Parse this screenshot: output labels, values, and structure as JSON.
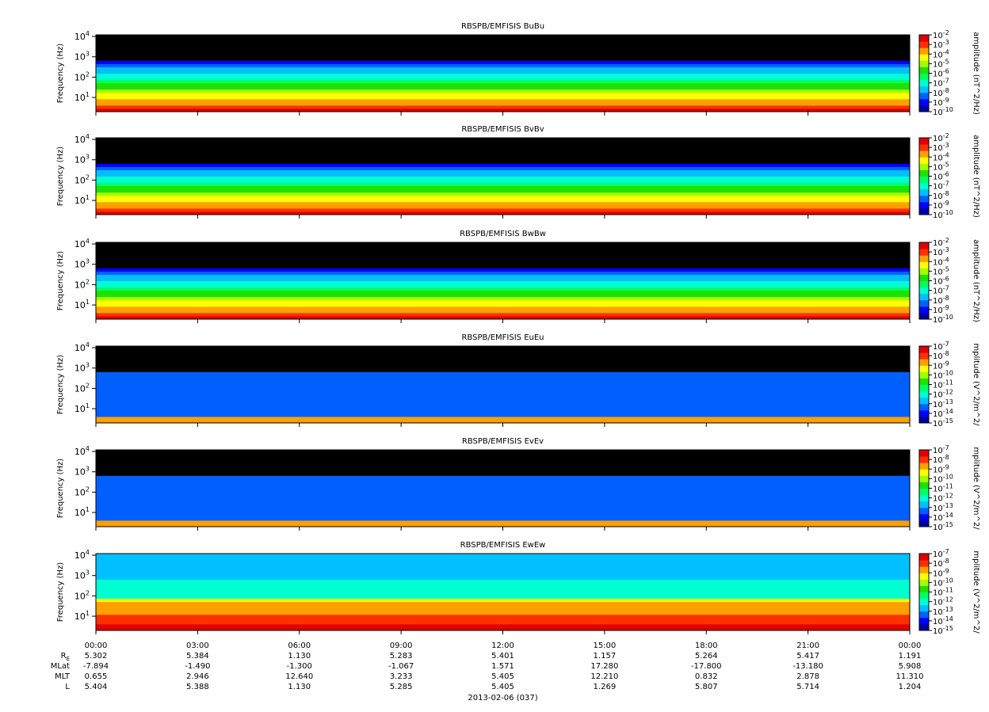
{
  "chart_data": [
    {
      "type": "heatmap",
      "title": "RBSPB/EMFISIS  BuBu",
      "ylabel": "Frequency (Hz)",
      "yscale": "log",
      "ylim": [
        2,
        12000
      ],
      "yticks": [
        [
          "10",
          "1"
        ],
        [
          "10",
          "2"
        ],
        [
          "10",
          "3"
        ],
        [
          "10",
          "4"
        ]
      ],
      "colorbar_label": "amplitude (nT^2/Hz)",
      "colorbar_ticks": [
        [
          "10",
          "-2"
        ],
        [
          "10",
          "-3"
        ],
        [
          "10",
          "-4"
        ],
        [
          "10",
          "-5"
        ],
        [
          "10",
          "-6"
        ],
        [
          "10",
          "-7"
        ],
        [
          "10",
          "-8"
        ],
        [
          "10",
          "-9"
        ],
        [
          "10",
          "-10"
        ]
      ],
      "colorbar_range": [
        -10,
        -2
      ]
    },
    {
      "type": "heatmap",
      "title": "RBSPB/EMFISIS  BvBv",
      "ylabel": "Frequency (Hz)",
      "yscale": "log",
      "ylim": [
        2,
        12000
      ],
      "yticks": [
        [
          "10",
          "1"
        ],
        [
          "10",
          "2"
        ],
        [
          "10",
          "3"
        ],
        [
          "10",
          "4"
        ]
      ],
      "colorbar_label": "amplitude (nT^2/Hz)",
      "colorbar_ticks": [
        [
          "10",
          "-2"
        ],
        [
          "10",
          "-3"
        ],
        [
          "10",
          "-4"
        ],
        [
          "10",
          "-5"
        ],
        [
          "10",
          "-6"
        ],
        [
          "10",
          "-7"
        ],
        [
          "10",
          "-8"
        ],
        [
          "10",
          "-9"
        ],
        [
          "10",
          "-10"
        ]
      ],
      "colorbar_range": [
        -10,
        -2
      ]
    },
    {
      "type": "heatmap",
      "title": "RBSPB/EMFISIS  BwBw",
      "ylabel": "Frequency (Hz)",
      "yscale": "log",
      "ylim": [
        2,
        12000
      ],
      "yticks": [
        [
          "10",
          "1"
        ],
        [
          "10",
          "2"
        ],
        [
          "10",
          "3"
        ],
        [
          "10",
          "4"
        ]
      ],
      "colorbar_label": "amplitude (nT^2/Hz)",
      "colorbar_ticks": [
        [
          "10",
          "-2"
        ],
        [
          "10",
          "-3"
        ],
        [
          "10",
          "-4"
        ],
        [
          "10",
          "-5"
        ],
        [
          "10",
          "-6"
        ],
        [
          "10",
          "-7"
        ],
        [
          "10",
          "-8"
        ],
        [
          "10",
          "-9"
        ],
        [
          "10",
          "-10"
        ]
      ],
      "colorbar_range": [
        -10,
        -2
      ]
    },
    {
      "type": "heatmap",
      "title": "RBSPB/EMFISIS  EuEu",
      "ylabel": "Frequency (Hz)",
      "yscale": "log",
      "ylim": [
        2,
        12000
      ],
      "yticks": [
        [
          "10",
          "1"
        ],
        [
          "10",
          "2"
        ],
        [
          "10",
          "3"
        ],
        [
          "10",
          "4"
        ]
      ],
      "colorbar_label": "mplitude (V^2/m^2/",
      "colorbar_ticks": [
        [
          "10",
          "-7"
        ],
        [
          "10",
          "-8"
        ],
        [
          "10",
          "-9"
        ],
        [
          "10",
          "-10"
        ],
        [
          "10",
          "-11"
        ],
        [
          "10",
          "-12"
        ],
        [
          "10",
          "-13"
        ],
        [
          "10",
          "-14"
        ],
        [
          "10",
          "-15"
        ]
      ],
      "colorbar_range": [
        -15,
        -7
      ]
    },
    {
      "type": "heatmap",
      "title": "RBSPB/EMFISIS  EvEv",
      "ylabel": "Frequency (Hz)",
      "yscale": "log",
      "ylim": [
        2,
        12000
      ],
      "yticks": [
        [
          "10",
          "1"
        ],
        [
          "10",
          "2"
        ],
        [
          "10",
          "3"
        ],
        [
          "10",
          "4"
        ]
      ],
      "colorbar_label": "mplitude (V^2/m^2/",
      "colorbar_ticks": [
        [
          "10",
          "-7"
        ],
        [
          "10",
          "-8"
        ],
        [
          "10",
          "-9"
        ],
        [
          "10",
          "-10"
        ],
        [
          "10",
          "-11"
        ],
        [
          "10",
          "-12"
        ],
        [
          "10",
          "-13"
        ],
        [
          "10",
          "-14"
        ],
        [
          "10",
          "-15"
        ]
      ],
      "colorbar_range": [
        -15,
        -7
      ]
    },
    {
      "type": "heatmap",
      "title": "RBSPB/EMFISIS  EwEw",
      "ylabel": "Frequency (Hz)",
      "yscale": "log",
      "ylim": [
        2,
        12000
      ],
      "yticks": [
        [
          "10",
          "1"
        ],
        [
          "10",
          "2"
        ],
        [
          "10",
          "3"
        ],
        [
          "10",
          "4"
        ]
      ],
      "colorbar_label": "mplitude (V^2/m^2/",
      "colorbar_ticks": [
        [
          "10",
          "-7"
        ],
        [
          "10",
          "-8"
        ],
        [
          "10",
          "-9"
        ],
        [
          "10",
          "-10"
        ],
        [
          "10",
          "-11"
        ],
        [
          "10",
          "-12"
        ],
        [
          "10",
          "-13"
        ],
        [
          "10",
          "-14"
        ],
        [
          "10",
          "-15"
        ]
      ],
      "colorbar_range": [
        -15,
        -7
      ]
    }
  ],
  "x_axis": {
    "ticks": [
      "00:00",
      "03:00",
      "06:00",
      "09:00",
      "12:00",
      "15:00",
      "18:00",
      "21:00",
      "00:00"
    ],
    "ephemeris": [
      {
        "label": "R",
        "sub": "E",
        "values": [
          "5.302",
          "5.384",
          "1.130",
          "5.283",
          "5.401",
          "1.157",
          "5.264",
          "5.417",
          "1.191"
        ]
      },
      {
        "label": "MLat",
        "values": [
          "-7.894",
          "-1.490",
          "-1.300",
          "-1.067",
          "1.571",
          "17.280",
          "-17.800",
          "-13.180",
          "5.908"
        ]
      },
      {
        "label": "MLT",
        "values": [
          "0.655",
          "2.946",
          "12.640",
          "3.233",
          "5.405",
          "12.210",
          "0.832",
          "2.878",
          "11.310"
        ]
      },
      {
        "label": "L",
        "values": [
          "5.404",
          "5.388",
          "1.130",
          "5.285",
          "5.405",
          "1.269",
          "5.807",
          "5.714",
          "1.204"
        ]
      }
    ],
    "date_label": "2013-02-06 (037)"
  },
  "colors": {
    "background": "#000000",
    "colormap": [
      "#0000a0",
      "#0000ff",
      "#0060ff",
      "#00c0ff",
      "#00ffd0",
      "#00ff60",
      "#20e000",
      "#a0ff00",
      "#ffff00",
      "#ffa000",
      "#ff3000",
      "#e00000"
    ]
  }
}
